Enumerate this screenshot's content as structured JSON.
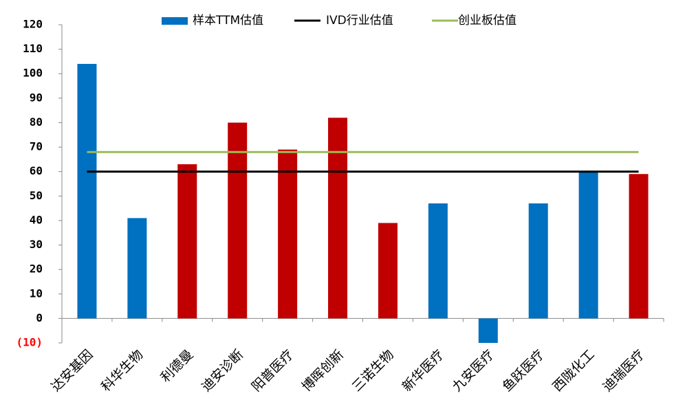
{
  "chart_data": {
    "type": "bar",
    "categories": [
      "达安基因",
      "科华生物",
      "利德曼",
      "迪安诊断",
      "阳普医疗",
      "博晖创新",
      "三诺生物",
      "新华医疗",
      "九安医疗",
      "鱼跃医疗",
      "西陇化工",
      "迪瑞医疗"
    ],
    "series": [
      {
        "name": "样本TTM估值",
        "color": "#0070c0",
        "values": [
          104,
          41,
          63,
          80,
          69,
          82,
          39,
          47,
          -10,
          47,
          60,
          59
        ],
        "colors": [
          "#0070c0",
          "#0070c0",
          "#c00000",
          "#c00000",
          "#c00000",
          "#c00000",
          "#c00000",
          "#0070c0",
          "#0070c0",
          "#0070c0",
          "#0070c0",
          "#c00000"
        ]
      },
      {
        "name": "IVD行业估值",
        "type": "line",
        "color": "#000000",
        "values": [
          60,
          60,
          60,
          60,
          60,
          60,
          60,
          60,
          60,
          60,
          60,
          60
        ]
      },
      {
        "name": "创业板估值",
        "type": "line",
        "color": "#9bbb59",
        "values": [
          68,
          68,
          68,
          68,
          68,
          68,
          68,
          68,
          68,
          68,
          68,
          68
        ]
      }
    ],
    "ylim": [
      -10,
      120
    ],
    "yticks": [
      {
        "value": -10,
        "label": "(10)"
      },
      0,
      10,
      20,
      30,
      40,
      50,
      60,
      70,
      80,
      90,
      100,
      110,
      120
    ],
    "negative_tick_color": "#ff0000",
    "legend": "top",
    "grid": false
  }
}
